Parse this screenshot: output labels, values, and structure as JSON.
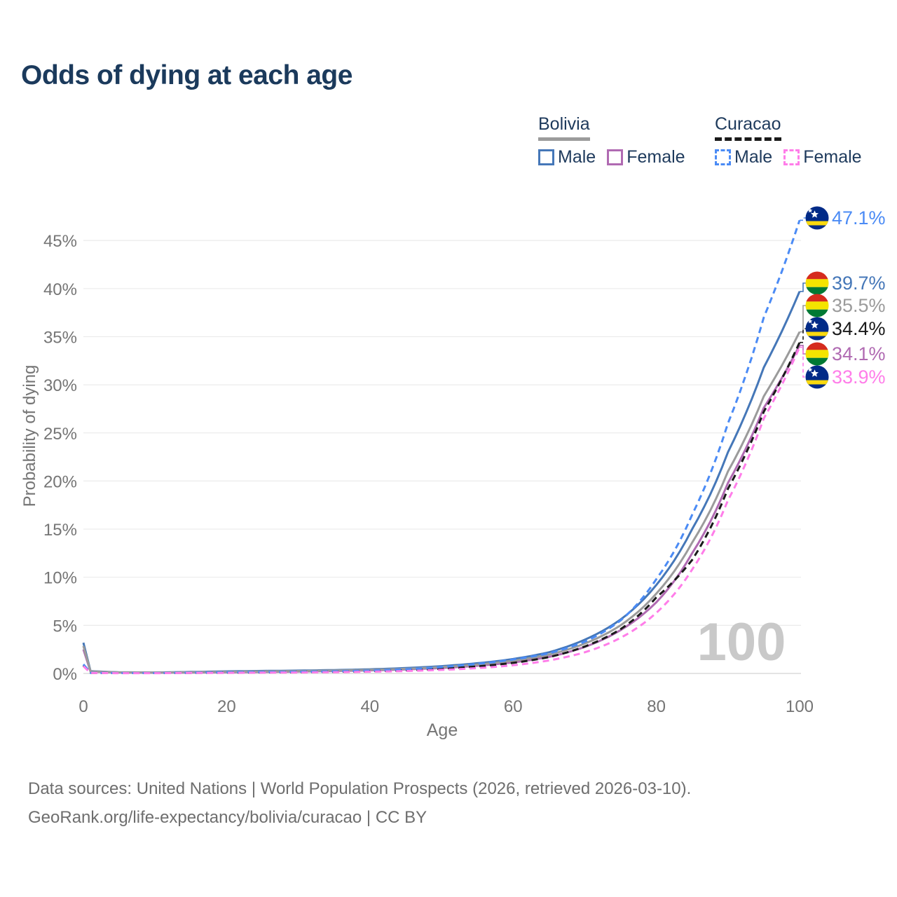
{
  "title": "Odds of dying at each age",
  "colors": {
    "title": "#1b3a5c",
    "text": "#1e3a5c",
    "axis": "#757575",
    "grid": "#ebebeb",
    "baseline": "#dcdcdc",
    "watermark": "#c9c9c9",
    "footer": "#6e6e6e",
    "bolivia_male": "#4577b8",
    "bolivia_female": "#b06ab2",
    "bolivia_both": "#9b9b9b",
    "curacao_male": "#4b8bf5",
    "curacao_both": "#1a1a1a",
    "curacao_female": "#ff7de9",
    "flag_bolivia_red": "#d52b1e",
    "flag_bolivia_yellow": "#f4e400",
    "flag_bolivia_green": "#007934",
    "flag_curacao_blue": "#012a87",
    "flag_curacao_yellow": "#f9d90f"
  },
  "legend": {
    "groups": [
      {
        "label": "Bolivia",
        "items": [
          {
            "label": "Male"
          },
          {
            "label": "Female"
          }
        ]
      },
      {
        "label": "Curacao",
        "items": [
          {
            "label": "Male"
          },
          {
            "label": "Female"
          }
        ]
      }
    ]
  },
  "footer": {
    "line1": "Data sources: United Nations | World Population Prospects (2026, retrieved 2026-03-10).",
    "line2": "GeoRank.org/life-expectancy/bolivia/curacao | CC BY"
  },
  "chart_data": {
    "type": "line",
    "title": "Odds of dying at each age",
    "xlabel": "Age",
    "ylabel": "Probability of dying",
    "xlim": [
      0,
      100
    ],
    "ylim": [
      0,
      45
    ],
    "x_ticks": [
      0,
      20,
      40,
      60,
      80,
      100
    ],
    "y_ticks": [
      0,
      5,
      10,
      15,
      20,
      25,
      30,
      35,
      40,
      45
    ],
    "y_tick_suffix": "%",
    "grid": "horizontal",
    "legend_position": "top-right",
    "watermark": "100",
    "x": [
      0,
      1,
      5,
      10,
      15,
      20,
      25,
      30,
      35,
      40,
      45,
      50,
      55,
      60,
      65,
      70,
      75,
      80,
      85,
      90,
      95,
      100
    ],
    "series": [
      {
        "name": "Bolivia Male",
        "country": "bolivia",
        "color_key": "bolivia_male",
        "dashed": false,
        "end_label": "39.7%",
        "end_value": 39.7,
        "values": [
          3.2,
          0.25,
          0.12,
          0.1,
          0.16,
          0.22,
          0.26,
          0.3,
          0.35,
          0.43,
          0.56,
          0.76,
          1.06,
          1.5,
          2.2,
          3.5,
          5.6,
          9.2,
          15.0,
          23.0,
          31.8,
          39.7
        ]
      },
      {
        "name": "Bolivia Female",
        "country": "bolivia",
        "color_key": "bolivia_female",
        "dashed": false,
        "end_label": "34.1%",
        "end_value": 34.1,
        "values": [
          2.5,
          0.2,
          0.1,
          0.08,
          0.1,
          0.13,
          0.16,
          0.2,
          0.25,
          0.32,
          0.42,
          0.57,
          0.8,
          1.15,
          1.72,
          2.75,
          4.5,
          7.4,
          12.5,
          19.8,
          27.6,
          34.1
        ]
      },
      {
        "name": "Bolivia",
        "country": "bolivia",
        "color_key": "bolivia_both",
        "dashed": false,
        "end_label": "35.5%",
        "end_value": 35.5,
        "values": [
          2.85,
          0.22,
          0.11,
          0.09,
          0.13,
          0.17,
          0.21,
          0.25,
          0.3,
          0.37,
          0.48,
          0.66,
          0.92,
          1.32,
          1.95,
          3.1,
          5.0,
          8.3,
          13.6,
          21.0,
          28.8,
          35.5
        ]
      },
      {
        "name": "Curacao",
        "country": "curacao",
        "color_key": "curacao_both",
        "dashed": true,
        "end_label": "34.4%",
        "end_value": 34.4,
        "values": [
          0.85,
          0.06,
          0.035,
          0.035,
          0.06,
          0.09,
          0.11,
          0.14,
          0.17,
          0.23,
          0.33,
          0.49,
          0.73,
          1.1,
          1.7,
          2.8,
          4.6,
          7.9,
          11.8,
          19.2,
          27.2,
          34.4
        ]
      },
      {
        "name": "Curacao Male",
        "country": "curacao",
        "color_key": "curacao_male",
        "dashed": true,
        "end_label": "47.1%",
        "end_value": 47.1,
        "values": [
          0.95,
          0.07,
          0.04,
          0.04,
          0.08,
          0.13,
          0.15,
          0.18,
          0.22,
          0.3,
          0.44,
          0.66,
          1.0,
          1.45,
          2.1,
          3.3,
          5.5,
          9.8,
          16.5,
          26.0,
          37.0,
          47.1
        ]
      },
      {
        "name": "Curacao Female",
        "country": "curacao",
        "color_key": "curacao_female",
        "dashed": true,
        "end_label": "33.9%",
        "end_value": 33.9,
        "values": [
          0.75,
          0.05,
          0.03,
          0.03,
          0.05,
          0.06,
          0.08,
          0.1,
          0.13,
          0.18,
          0.25,
          0.37,
          0.55,
          0.85,
          1.35,
          2.2,
          3.7,
          6.3,
          10.8,
          18.0,
          26.5,
          33.9
        ]
      }
    ]
  }
}
